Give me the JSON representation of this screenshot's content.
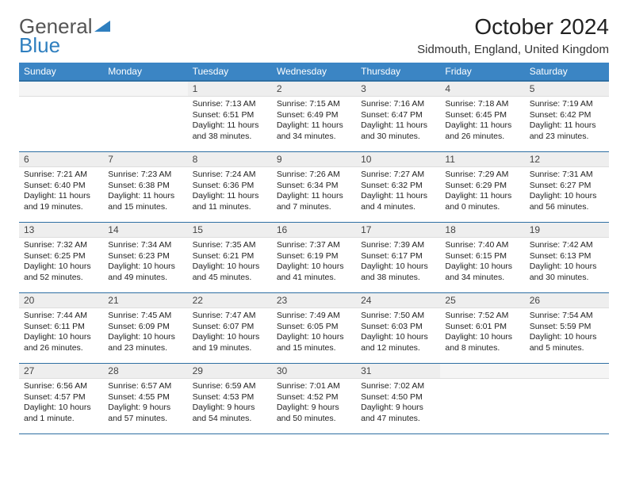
{
  "logo": {
    "part1": "General",
    "part2": "Blue"
  },
  "title": "October 2024",
  "location": "Sidmouth, England, United Kingdom",
  "colors": {
    "header_bg": "#3b85c4",
    "header_text": "#ffffff",
    "rule": "#2e6fa3",
    "daynum_bg": "#eeeeee",
    "page_bg": "#ffffff"
  },
  "weekdays": [
    "Sunday",
    "Monday",
    "Tuesday",
    "Wednesday",
    "Thursday",
    "Friday",
    "Saturday"
  ],
  "weeks": [
    [
      {
        "n": "",
        "sr": "",
        "ss": "",
        "dl": ""
      },
      {
        "n": "",
        "sr": "",
        "ss": "",
        "dl": ""
      },
      {
        "n": "1",
        "sr": "Sunrise: 7:13 AM",
        "ss": "Sunset: 6:51 PM",
        "dl": "Daylight: 11 hours and 38 minutes."
      },
      {
        "n": "2",
        "sr": "Sunrise: 7:15 AM",
        "ss": "Sunset: 6:49 PM",
        "dl": "Daylight: 11 hours and 34 minutes."
      },
      {
        "n": "3",
        "sr": "Sunrise: 7:16 AM",
        "ss": "Sunset: 6:47 PM",
        "dl": "Daylight: 11 hours and 30 minutes."
      },
      {
        "n": "4",
        "sr": "Sunrise: 7:18 AM",
        "ss": "Sunset: 6:45 PM",
        "dl": "Daylight: 11 hours and 26 minutes."
      },
      {
        "n": "5",
        "sr": "Sunrise: 7:19 AM",
        "ss": "Sunset: 6:42 PM",
        "dl": "Daylight: 11 hours and 23 minutes."
      }
    ],
    [
      {
        "n": "6",
        "sr": "Sunrise: 7:21 AM",
        "ss": "Sunset: 6:40 PM",
        "dl": "Daylight: 11 hours and 19 minutes."
      },
      {
        "n": "7",
        "sr": "Sunrise: 7:23 AM",
        "ss": "Sunset: 6:38 PM",
        "dl": "Daylight: 11 hours and 15 minutes."
      },
      {
        "n": "8",
        "sr": "Sunrise: 7:24 AM",
        "ss": "Sunset: 6:36 PM",
        "dl": "Daylight: 11 hours and 11 minutes."
      },
      {
        "n": "9",
        "sr": "Sunrise: 7:26 AM",
        "ss": "Sunset: 6:34 PM",
        "dl": "Daylight: 11 hours and 7 minutes."
      },
      {
        "n": "10",
        "sr": "Sunrise: 7:27 AM",
        "ss": "Sunset: 6:32 PM",
        "dl": "Daylight: 11 hours and 4 minutes."
      },
      {
        "n": "11",
        "sr": "Sunrise: 7:29 AM",
        "ss": "Sunset: 6:29 PM",
        "dl": "Daylight: 11 hours and 0 minutes."
      },
      {
        "n": "12",
        "sr": "Sunrise: 7:31 AM",
        "ss": "Sunset: 6:27 PM",
        "dl": "Daylight: 10 hours and 56 minutes."
      }
    ],
    [
      {
        "n": "13",
        "sr": "Sunrise: 7:32 AM",
        "ss": "Sunset: 6:25 PM",
        "dl": "Daylight: 10 hours and 52 minutes."
      },
      {
        "n": "14",
        "sr": "Sunrise: 7:34 AM",
        "ss": "Sunset: 6:23 PM",
        "dl": "Daylight: 10 hours and 49 minutes."
      },
      {
        "n": "15",
        "sr": "Sunrise: 7:35 AM",
        "ss": "Sunset: 6:21 PM",
        "dl": "Daylight: 10 hours and 45 minutes."
      },
      {
        "n": "16",
        "sr": "Sunrise: 7:37 AM",
        "ss": "Sunset: 6:19 PM",
        "dl": "Daylight: 10 hours and 41 minutes."
      },
      {
        "n": "17",
        "sr": "Sunrise: 7:39 AM",
        "ss": "Sunset: 6:17 PM",
        "dl": "Daylight: 10 hours and 38 minutes."
      },
      {
        "n": "18",
        "sr": "Sunrise: 7:40 AM",
        "ss": "Sunset: 6:15 PM",
        "dl": "Daylight: 10 hours and 34 minutes."
      },
      {
        "n": "19",
        "sr": "Sunrise: 7:42 AM",
        "ss": "Sunset: 6:13 PM",
        "dl": "Daylight: 10 hours and 30 minutes."
      }
    ],
    [
      {
        "n": "20",
        "sr": "Sunrise: 7:44 AM",
        "ss": "Sunset: 6:11 PM",
        "dl": "Daylight: 10 hours and 26 minutes."
      },
      {
        "n": "21",
        "sr": "Sunrise: 7:45 AM",
        "ss": "Sunset: 6:09 PM",
        "dl": "Daylight: 10 hours and 23 minutes."
      },
      {
        "n": "22",
        "sr": "Sunrise: 7:47 AM",
        "ss": "Sunset: 6:07 PM",
        "dl": "Daylight: 10 hours and 19 minutes."
      },
      {
        "n": "23",
        "sr": "Sunrise: 7:49 AM",
        "ss": "Sunset: 6:05 PM",
        "dl": "Daylight: 10 hours and 15 minutes."
      },
      {
        "n": "24",
        "sr": "Sunrise: 7:50 AM",
        "ss": "Sunset: 6:03 PM",
        "dl": "Daylight: 10 hours and 12 minutes."
      },
      {
        "n": "25",
        "sr": "Sunrise: 7:52 AM",
        "ss": "Sunset: 6:01 PM",
        "dl": "Daylight: 10 hours and 8 minutes."
      },
      {
        "n": "26",
        "sr": "Sunrise: 7:54 AM",
        "ss": "Sunset: 5:59 PM",
        "dl": "Daylight: 10 hours and 5 minutes."
      }
    ],
    [
      {
        "n": "27",
        "sr": "Sunrise: 6:56 AM",
        "ss": "Sunset: 4:57 PM",
        "dl": "Daylight: 10 hours and 1 minute."
      },
      {
        "n": "28",
        "sr": "Sunrise: 6:57 AM",
        "ss": "Sunset: 4:55 PM",
        "dl": "Daylight: 9 hours and 57 minutes."
      },
      {
        "n": "29",
        "sr": "Sunrise: 6:59 AM",
        "ss": "Sunset: 4:53 PM",
        "dl": "Daylight: 9 hours and 54 minutes."
      },
      {
        "n": "30",
        "sr": "Sunrise: 7:01 AM",
        "ss": "Sunset: 4:52 PM",
        "dl": "Daylight: 9 hours and 50 minutes."
      },
      {
        "n": "31",
        "sr": "Sunrise: 7:02 AM",
        "ss": "Sunset: 4:50 PM",
        "dl": "Daylight: 9 hours and 47 minutes."
      },
      {
        "n": "",
        "sr": "",
        "ss": "",
        "dl": ""
      },
      {
        "n": "",
        "sr": "",
        "ss": "",
        "dl": ""
      }
    ]
  ]
}
